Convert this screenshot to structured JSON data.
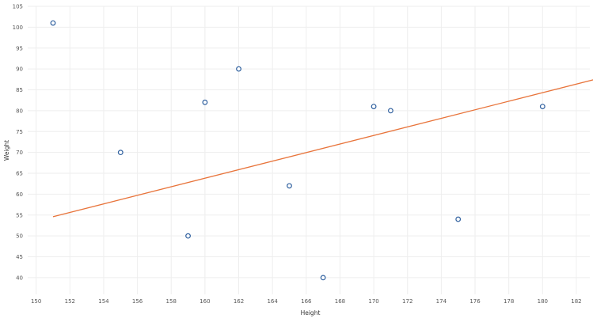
{
  "chart_data": {
    "type": "scatter",
    "xlabel": "Height",
    "ylabel": "Weight",
    "xlim": [
      149.5,
      182.8
    ],
    "ylim": [
      36,
      105
    ],
    "x_ticks": [
      "150",
      "152",
      "154",
      "156",
      "158",
      "160",
      "162",
      "164",
      "166",
      "168",
      "170",
      "172",
      "174",
      "176",
      "178",
      "180",
      "182"
    ],
    "y_ticks": [
      "40",
      "45",
      "50",
      "55",
      "60",
      "65",
      "70",
      "75",
      "80",
      "85",
      "90",
      "95",
      "100",
      "105"
    ],
    "grid": true,
    "points": [
      {
        "x": 151,
        "y": 101
      },
      {
        "x": 155,
        "y": 70
      },
      {
        "x": 159,
        "y": 50
      },
      {
        "x": 160,
        "y": 82
      },
      {
        "x": 162,
        "y": 90
      },
      {
        "x": 165,
        "y": 62
      },
      {
        "x": 167,
        "y": 40
      },
      {
        "x": 170,
        "y": 81
      },
      {
        "x": 171,
        "y": 80
      },
      {
        "x": 175,
        "y": 54
      },
      {
        "x": 180,
        "y": 81
      }
    ],
    "trendline": {
      "x": [
        151,
        183.5
      ],
      "y": [
        54.6,
        87.9
      ]
    },
    "colors": {
      "points": "#2e5f9e",
      "trendline": "#e8743b",
      "grid": "#eeeeee",
      "text": "#555555"
    }
  }
}
